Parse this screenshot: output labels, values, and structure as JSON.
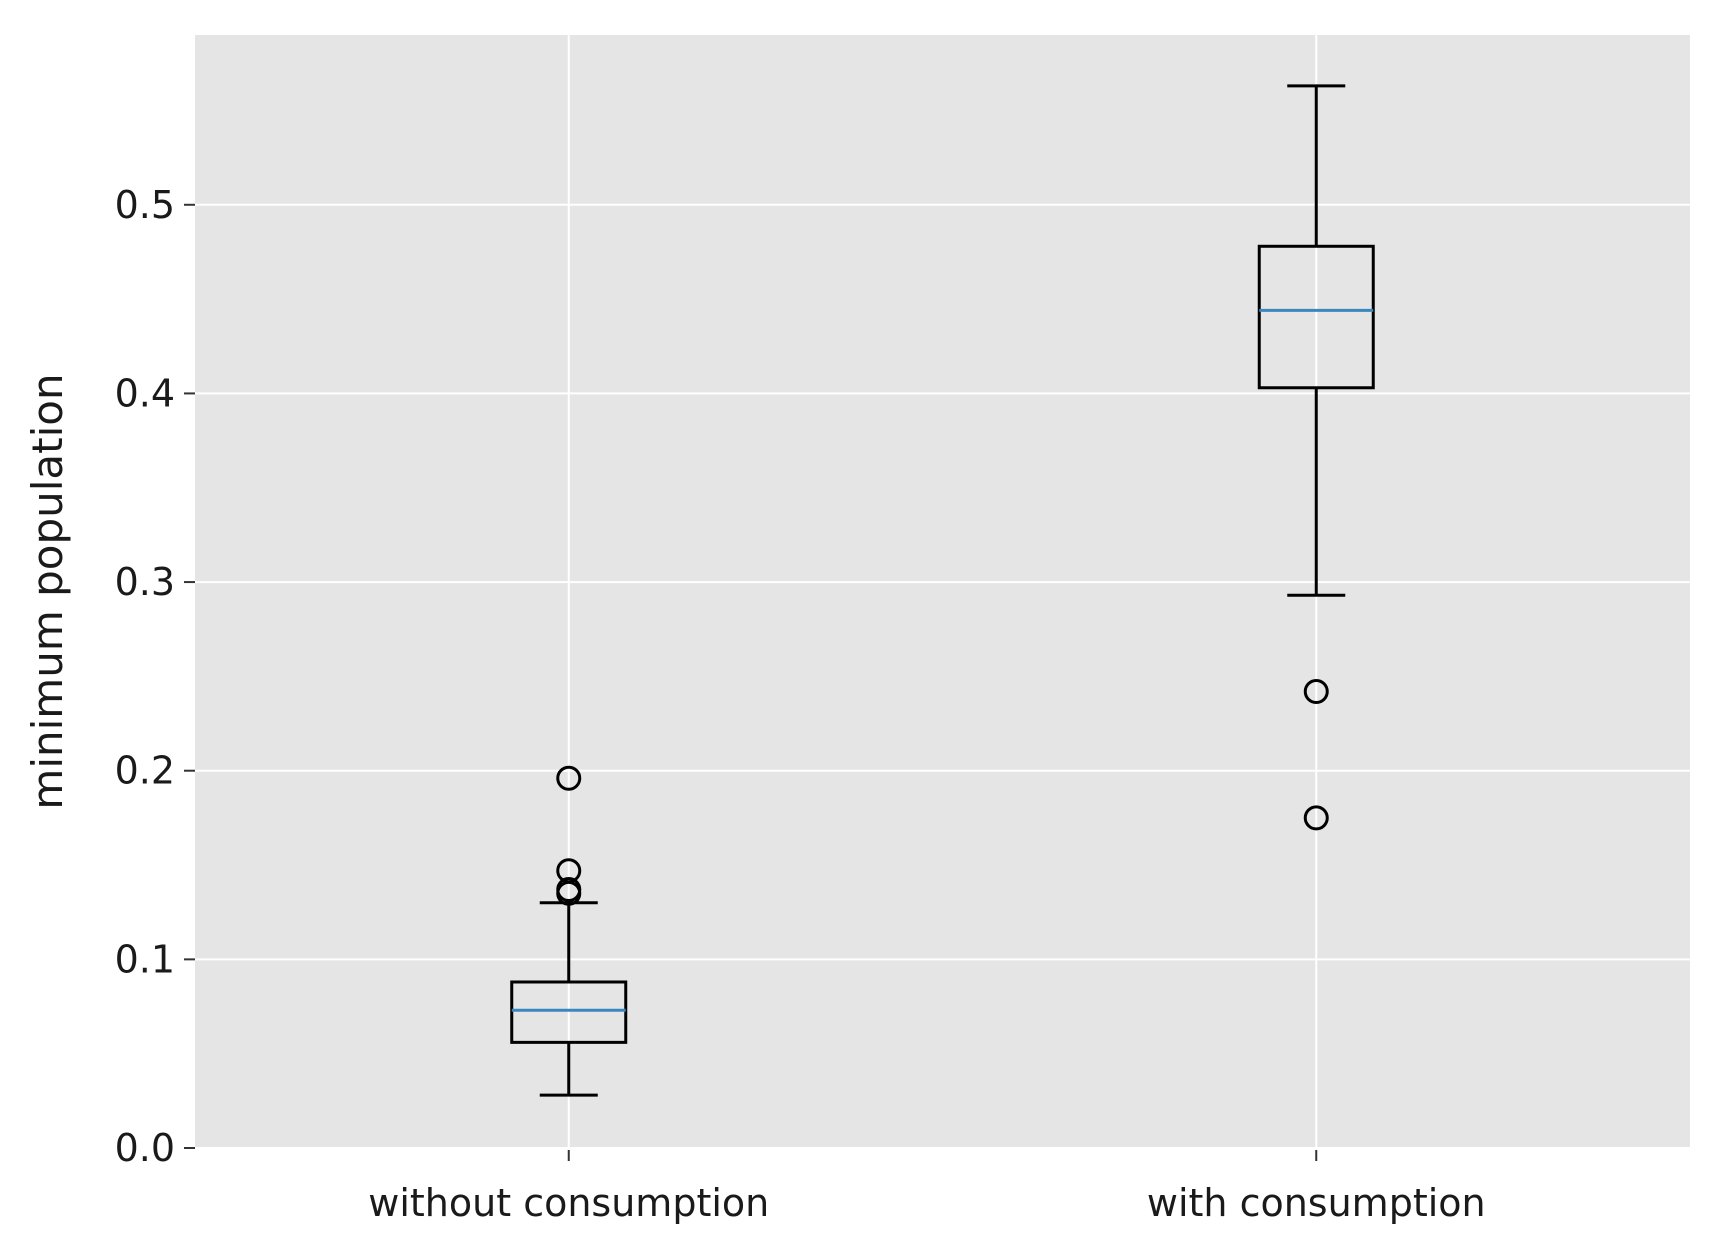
{
  "chart_data": {
    "type": "boxplot",
    "title": "",
    "xlabel": "",
    "ylabel": "minimum population",
    "ylim": [
      0.0,
      0.59
    ],
    "yticks": [
      "0.0",
      "0.1",
      "0.2",
      "0.3",
      "0.4",
      "0.5"
    ],
    "grid": true,
    "background": "#e5e5e5",
    "grid_color": "#ffffff",
    "median_color": "#3a87c0",
    "box_color": "#000000",
    "categories": [
      "without consumption",
      "with consumption"
    ],
    "boxes": [
      {
        "category": "without consumption",
        "whisker_low": 0.028,
        "q1": 0.056,
        "median": 0.073,
        "q3": 0.088,
        "whisker_high": 0.13,
        "outliers": [
          0.196,
          0.147,
          0.137,
          0.135
        ]
      },
      {
        "category": "with consumption",
        "whisker_low": 0.293,
        "q1": 0.403,
        "median": 0.444,
        "q3": 0.478,
        "whisker_high": 0.563,
        "outliers": [
          0.242,
          0.175
        ]
      }
    ]
  }
}
